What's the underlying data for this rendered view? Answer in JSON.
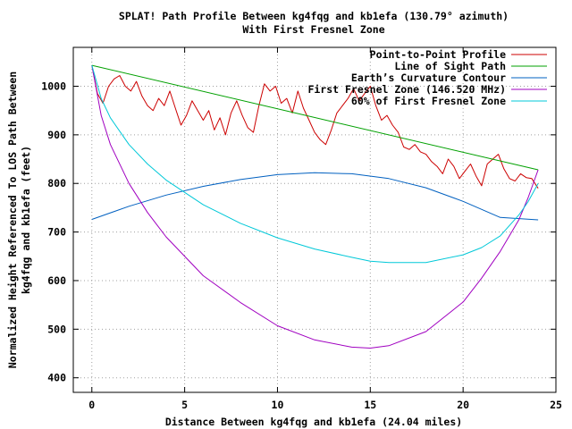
{
  "chart_data": {
    "type": "line",
    "title": [
      "SPLAT! Path Profile Between kg4fqg and kb1efa (130.79° azimuth)",
      "With First Fresnel Zone"
    ],
    "xlabel": "Distance Between kg4fqg and kb1efa (24.04 miles)",
    "ylabel": [
      "Normalized Height Referenced To LOS Path Between",
      "kg4fqg and kb1efa (feet)"
    ],
    "xlim": [
      -1,
      25
    ],
    "ylim": [
      370,
      1080
    ],
    "x_ticks": [
      0,
      5,
      10,
      15,
      20,
      25
    ],
    "y_ticks": [
      400,
      500,
      600,
      700,
      800,
      900,
      1000
    ],
    "grid": true,
    "legend_position": "top-right",
    "series": [
      {
        "name": "Point-to-Point Profile",
        "color": "#cc0000",
        "x": [
          0.0,
          0.3,
          0.6,
          0.9,
          1.2,
          1.5,
          1.8,
          2.1,
          2.4,
          2.7,
          3.0,
          3.3,
          3.6,
          3.9,
          4.2,
          4.5,
          4.8,
          5.1,
          5.4,
          5.7,
          6.0,
          6.3,
          6.6,
          6.9,
          7.2,
          7.5,
          7.8,
          8.1,
          8.4,
          8.7,
          9.0,
          9.3,
          9.6,
          9.9,
          10.2,
          10.5,
          10.8,
          11.1,
          11.4,
          11.7,
          12.0,
          12.3,
          12.6,
          12.9,
          13.2,
          13.5,
          13.8,
          14.1,
          14.4,
          14.7,
          15.0,
          15.3,
          15.6,
          15.9,
          16.2,
          16.5,
          16.8,
          17.1,
          17.4,
          17.7,
          18.0,
          18.3,
          18.6,
          18.9,
          19.2,
          19.5,
          19.8,
          20.1,
          20.4,
          20.7,
          21.0,
          21.3,
          21.6,
          21.9,
          22.2,
          22.5,
          22.8,
          23.1,
          23.4,
          23.7,
          24.04
        ],
        "values": [
          1043,
          985,
          965,
          1000,
          1015,
          1022,
          1000,
          990,
          1010,
          980,
          960,
          950,
          975,
          960,
          990,
          955,
          920,
          940,
          970,
          950,
          930,
          950,
          910,
          935,
          900,
          945,
          970,
          940,
          915,
          905,
          960,
          1005,
          990,
          1000,
          965,
          975,
          945,
          990,
          955,
          930,
          905,
          890,
          880,
          910,
          945,
          960,
          975,
          995,
          970,
          985,
          1000,
          960,
          930,
          940,
          920,
          905,
          875,
          870,
          880,
          865,
          860,
          845,
          835,
          820,
          850,
          835,
          810,
          825,
          840,
          815,
          795,
          840,
          850,
          860,
          830,
          810,
          805,
          820,
          812,
          810,
          790
        ]
      },
      {
        "name": "Line of Sight Path",
        "color": "#00a000",
        "x": [
          0.0,
          24.04
        ],
        "values": [
          1043,
          828
        ]
      },
      {
        "name": "Earth’s Curvature Contour",
        "color": "#0060c0",
        "x": [
          0.0,
          2,
          4,
          6,
          8,
          10,
          12,
          14,
          16,
          18,
          20,
          22,
          24.04
        ],
        "values": [
          726,
          753,
          776,
          794,
          808,
          818,
          822,
          820,
          810,
          791,
          763,
          730,
          725
        ]
      },
      {
        "name": "First Fresnel Zone (146.520 MHz)",
        "color": "#a000c0",
        "x": [
          0.0,
          0.5,
          1,
          2,
          3,
          4,
          6,
          8,
          10,
          12,
          14,
          15,
          16,
          18,
          20,
          21,
          22,
          23,
          23.5,
          24.04
        ],
        "values": [
          1043,
          940,
          880,
          800,
          740,
          690,
          610,
          555,
          507,
          478,
          463,
          461,
          466,
          495,
          556,
          605,
          660,
          725,
          770,
          828
        ]
      },
      {
        "name": "60% of First Fresnel Zone",
        "color": "#00c8d8",
        "x": [
          0.0,
          0.5,
          1,
          2,
          3,
          4,
          6,
          8,
          10,
          12,
          14,
          15,
          16,
          18,
          20,
          21,
          22,
          23,
          23.5,
          24.04
        ],
        "values": [
          1043,
          975,
          935,
          880,
          840,
          807,
          756,
          718,
          688,
          665,
          648,
          640,
          637,
          637,
          653,
          668,
          692,
          735,
          762,
          800
        ]
      }
    ]
  }
}
